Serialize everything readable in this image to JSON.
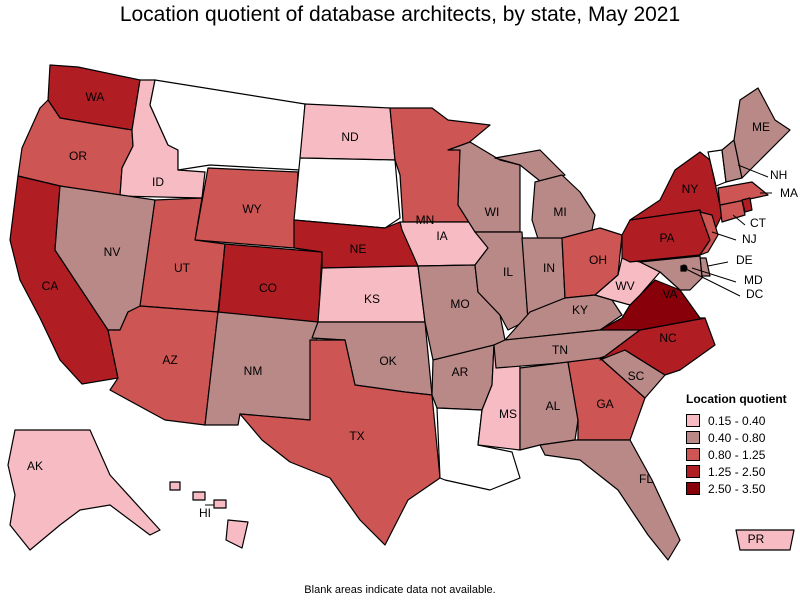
{
  "title": "Location quotient of database architects, by state, May 2021",
  "footnote": "Blank areas indicate data not available.",
  "legend": {
    "title": "Location quotient",
    "items": [
      {
        "label": "0.15 - 0.40",
        "color": "#f7bcc3"
      },
      {
        "label": "0.40 - 0.80",
        "color": "#b98988"
      },
      {
        "label": "0.80 - 1.25",
        "color": "#cd5554"
      },
      {
        "label": "1.25 - 2.50",
        "color": "#b01e24"
      },
      {
        "label": "2.50 - 3.50",
        "color": "#880009"
      }
    ]
  },
  "states": [
    {
      "code": "WA",
      "bin": 3
    },
    {
      "code": "OR",
      "bin": 2
    },
    {
      "code": "CA",
      "bin": 3
    },
    {
      "code": "ID",
      "bin": 0
    },
    {
      "code": "NV",
      "bin": 1
    },
    {
      "code": "MT",
      "bin": null
    },
    {
      "code": "WY",
      "bin": 2
    },
    {
      "code": "UT",
      "bin": 2
    },
    {
      "code": "AZ",
      "bin": 2
    },
    {
      "code": "CO",
      "bin": 3
    },
    {
      "code": "NM",
      "bin": 1
    },
    {
      "code": "ND",
      "bin": 0
    },
    {
      "code": "SD",
      "bin": null
    },
    {
      "code": "NE",
      "bin": 3
    },
    {
      "code": "KS",
      "bin": 0
    },
    {
      "code": "OK",
      "bin": 1
    },
    {
      "code": "TX",
      "bin": 2
    },
    {
      "code": "MN",
      "bin": 2
    },
    {
      "code": "IA",
      "bin": 0
    },
    {
      "code": "MO",
      "bin": 1
    },
    {
      "code": "AR",
      "bin": 1
    },
    {
      "code": "LA",
      "bin": null
    },
    {
      "code": "WI",
      "bin": 1
    },
    {
      "code": "IL",
      "bin": 1
    },
    {
      "code": "MS",
      "bin": 0
    },
    {
      "code": "MI",
      "bin": 1
    },
    {
      "code": "IN",
      "bin": 1
    },
    {
      "code": "OH",
      "bin": 2
    },
    {
      "code": "KY",
      "bin": 1
    },
    {
      "code": "TN",
      "bin": 1
    },
    {
      "code": "AL",
      "bin": 1
    },
    {
      "code": "GA",
      "bin": 2
    },
    {
      "code": "FL",
      "bin": 1
    },
    {
      "code": "SC",
      "bin": 1
    },
    {
      "code": "NC",
      "bin": 3
    },
    {
      "code": "VA",
      "bin": 4
    },
    {
      "code": "WV",
      "bin": 0
    },
    {
      "code": "PA",
      "bin": 3
    },
    {
      "code": "NY",
      "bin": 3
    },
    {
      "code": "NJ",
      "bin": 2
    },
    {
      "code": "DE",
      "bin": 1
    },
    {
      "code": "MD",
      "bin": 1
    },
    {
      "code": "DC",
      "bin": 4
    },
    {
      "code": "CT",
      "bin": 2
    },
    {
      "code": "MA",
      "bin": 2
    },
    {
      "code": "VT",
      "bin": null
    },
    {
      "code": "NH",
      "bin": 1
    },
    {
      "code": "ME",
      "bin": 1
    },
    {
      "code": "RI",
      "bin": 3
    },
    {
      "code": "AK",
      "bin": 0
    },
    {
      "code": "HI",
      "bin": 0
    },
    {
      "code": "PR",
      "bin": 0
    }
  ]
}
